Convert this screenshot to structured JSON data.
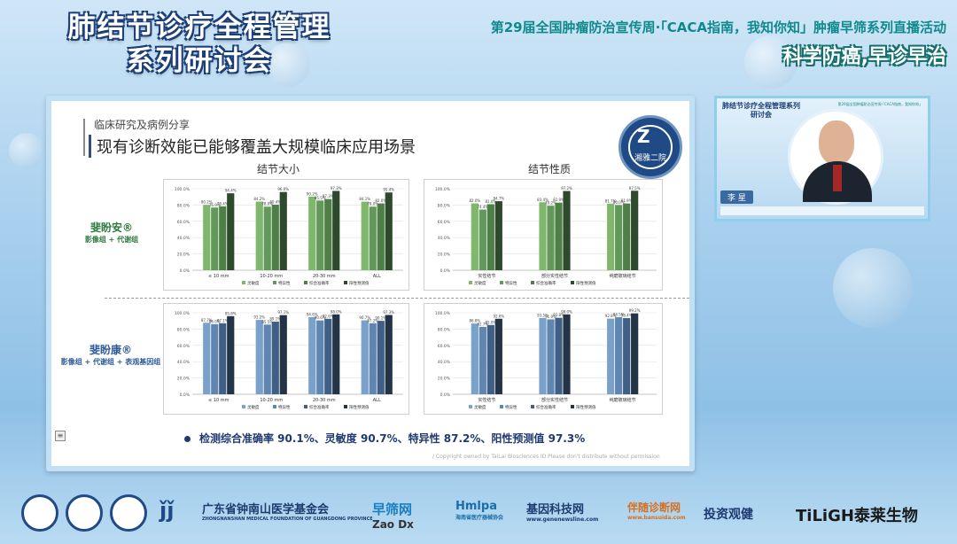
{
  "header": {
    "main_title_line1": "肺结节诊疗全程管理",
    "main_title_line2": "系列研讨会",
    "event_title": "第29届全国肿瘤防治宣传周·「CACA指南，我知你知」肿瘤早筛系列直播活动",
    "slogan": "科学防癌,早诊早治"
  },
  "slide": {
    "section": "临床研究及病例分享",
    "title": "现有诊断效能已能够覆盖大规模临床应用场景",
    "logo_text": "湘雅二院",
    "col_size": "结节大小",
    "col_nature": "结节性质",
    "row1": {
      "name": "斐盼安®",
      "sub": "影像组 + 代谢组"
    },
    "row2": {
      "name": "斐盼康®",
      "sub": "影像组 + 代谢组 + 表观基因组"
    },
    "summary": "检测综合准确率 90.1%、灵敏度 90.7%、特异性 87.2%、阳性预测值 97.3%",
    "copyright": "/ Copyright owned by TaiLai Biosciences ID Please don't distribute without permission",
    "menu_glyph": "≡"
  },
  "speaker": {
    "title": "肺结节诊疗全程管理系列研讨会",
    "event": "第29届全国肿瘤防治宣传周·「CACA指南，我知你知」",
    "name": "李 星"
  },
  "footer": {
    "org1": "广东省钟南山医学基金会",
    "org1_sub": "ZHONGNANSHAN MEDICAL FOUNDATION OF GUANGDONG PROVINCE",
    "org2": "早筛网",
    "org2_sub": "Zao Dx",
    "org3": "Hmlpa",
    "org3_sub": "海南省医疗器械协会",
    "org4": "基因科技网",
    "org4_sub": "www.genenewsline.com",
    "org5": "伴随诊断网",
    "org5_sub": "www.bansuida.com",
    "org6": "投资观健",
    "org7": "TiLiGH泰莱生物"
  },
  "colors": {
    "green_shades": [
      "#7fb86c",
      "#62995a",
      "#4d7f47",
      "#2e4a2c"
    ],
    "blue_shades": [
      "#7aa1c9",
      "#5f86b1",
      "#3f5f86",
      "#243447"
    ]
  },
  "chart_data": [
    {
      "type": "bar",
      "title": "结节大小",
      "row": "斐盼安®",
      "categories": [
        "≤ 10 mm",
        "10-20 mm",
        "20-30 mm",
        "ALL"
      ],
      "series": [
        {
          "name": "灵敏度",
          "values": [
            80.2,
            84.2,
            90.2,
            84.1
          ]
        },
        {
          "name": "特异性",
          "values": [
            76.9,
            78.0,
            85.5,
            78.0
          ]
        },
        {
          "name": "综合准确率",
          "values": [
            78.4,
            80.4,
            87.3,
            82.0
          ]
        },
        {
          "name": "阳性预测值",
          "values": [
            94.4,
            96.0,
            97.3,
            95.4
          ]
        }
      ],
      "ylim": [
        0,
        100
      ],
      "ytick_labels": [
        "0.0%",
        "20.0%",
        "40.0%",
        "60.0%",
        "80.0%",
        "100.0%"
      ]
    },
    {
      "type": "bar",
      "title": "结节性质",
      "row": "斐盼安®",
      "categories": [
        "实性结节",
        "部分实性结节",
        "纯磨玻璃结节"
      ],
      "series": [
        {
          "name": "灵敏度",
          "values": [
            82.0,
            83.4,
            81.7
          ]
        },
        {
          "name": "特异性",
          "values": [
            74.4,
            79.2,
            80.0
          ]
        },
        {
          "name": "综合准确率",
          "values": [
            81.0,
            82.9,
            81.9
          ]
        },
        {
          "name": "阳性预测值",
          "values": [
            84.7,
            97.2,
            97.5
          ]
        }
      ],
      "ylim": [
        0,
        100
      ],
      "ytick_labels": [
        "0.0%",
        "20.0%",
        "40.0%",
        "60.0%",
        "80.0%",
        "100.0%"
      ]
    },
    {
      "type": "bar",
      "title": "结节大小",
      "row": "斐盼康®",
      "categories": [
        "≤ 10 mm",
        "10-20 mm",
        "20-30 mm",
        "ALL"
      ],
      "series": [
        {
          "name": "灵敏度",
          "values": [
            87.7,
            91.2,
            94.6,
            90.7
          ]
        },
        {
          "name": "特异性",
          "values": [
            86.0,
            85.5,
            90.6,
            87.2
          ]
        },
        {
          "name": "综合准确率",
          "values": [
            87.1,
            89.1,
            92.6,
            90.1
          ]
        },
        {
          "name": "阳性预测值",
          "values": [
            95.8,
            97.1,
            98.0,
            97.3
          ]
        }
      ],
      "ylim": [
        0,
        100
      ],
      "ytick_labels": [
        "0.0%",
        "20.0%",
        "40.0%",
        "60.0%",
        "80.0%",
        "100.0%"
      ]
    },
    {
      "type": "bar",
      "title": "结节性质",
      "row": "斐盼康®",
      "categories": [
        "实性结节",
        "部分实性结节",
        "纯磨玻璃结节"
      ],
      "series": [
        {
          "name": "灵敏度",
          "values": [
            86.8,
            93.5,
            92.8
          ]
        },
        {
          "name": "特异性",
          "values": [
            82.7,
            91.9,
            94.5
          ]
        },
        {
          "name": "综合准确率",
          "values": [
            85.0,
            93.8,
            93.4
          ]
        },
        {
          "name": "阳性预测值",
          "values": [
            92.6,
            98.0,
            99.2
          ]
        }
      ],
      "ylim": [
        0,
        100
      ],
      "ytick_labels": [
        "0.0%",
        "20.0%",
        "40.0%",
        "60.0%",
        "80.0%",
        "100.0%"
      ]
    }
  ]
}
